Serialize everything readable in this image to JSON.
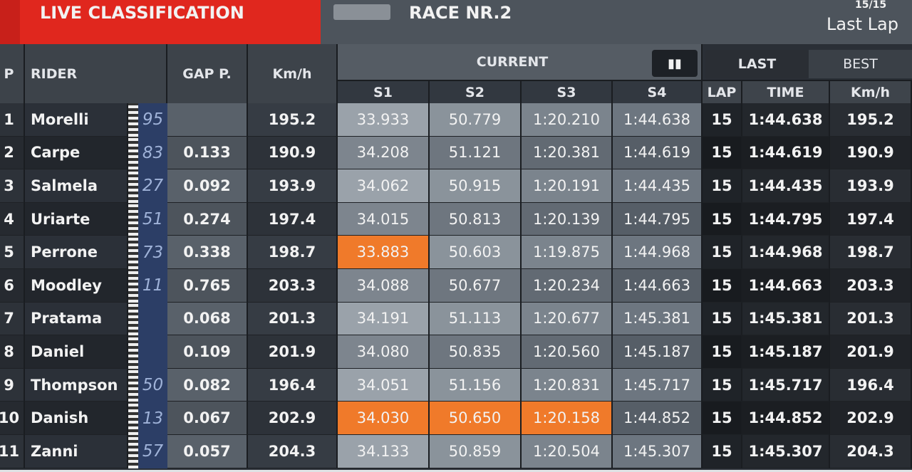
{
  "header": {
    "title": "LIVE CLASSIFICATION",
    "race": "RACE NR.2",
    "lap_count": "15/15",
    "status": "Last Lap"
  },
  "table": {
    "columns": [
      "P",
      "RIDER",
      "GAP P.",
      "Km/h",
      "S1",
      "S2",
      "S3",
      "S4",
      "LAP",
      "TIME",
      "Km/h"
    ],
    "groups": {
      "current": "CURRENT",
      "last": "LAST",
      "best": "BEST"
    },
    "rows": [
      {
        "pos": "1",
        "rider": "Morelli",
        "number": "95",
        "gap": null,
        "speed": "195.2",
        "sectors": [
          "33.933",
          "50.779",
          "1:20.210",
          "1:44.638"
        ],
        "lap": "15",
        "time": "1:44.638",
        "lap_speed": "195.2"
      },
      {
        "pos": "2",
        "rider": "Carpe",
        "number": "83",
        "gap": "0.133",
        "speed": "190.9",
        "sectors": [
          "34.208",
          "51.121",
          "1:20.381",
          "1:44.619"
        ],
        "lap": "15",
        "time": "1:44.619",
        "lap_speed": "190.9"
      },
      {
        "pos": "3",
        "rider": "Salmela",
        "number": "27",
        "gap": "0.092",
        "speed": "193.9",
        "sectors": [
          "34.062",
          "50.915",
          "1:20.191",
          "1:44.435"
        ],
        "lap": "15",
        "time": "1:44.435",
        "lap_speed": "193.9"
      },
      {
        "pos": "4",
        "rider": "Uriarte",
        "number": "51",
        "gap": "0.274",
        "speed": "197.4",
        "sectors": [
          "34.015",
          "50.813",
          "1:20.139",
          "1:44.795"
        ],
        "lap": "15",
        "time": "1:44.795",
        "lap_speed": "197.4"
      },
      {
        "pos": "5",
        "rider": "Perrone",
        "number": "73",
        "gap": "0.338",
        "speed": "198.7",
        "sectors": [
          {
            "text": "33.883",
            "color": "#f07a2a"
          },
          "50.603",
          "1:19.875",
          "1:44.968"
        ],
        "lap": "15",
        "time": "1:44.968",
        "lap_speed": "198.7"
      },
      {
        "pos": "6",
        "rider": "Moodley",
        "number": "11",
        "gap": "0.765",
        "speed": "203.3",
        "sectors": [
          "34.088",
          "50.677",
          "1:20.234",
          "1:44.663"
        ],
        "lap": "15",
        "time": "1:44.663",
        "lap_speed": "203.3"
      },
      {
        "pos": "7",
        "rider": "Pratama",
        "number": null,
        "gap": "0.068",
        "speed": "201.3",
        "sectors": [
          "34.191",
          "51.113",
          "1:20.677",
          "1:45.381"
        ],
        "lap": "15",
        "time": "1:45.381",
        "lap_speed": "201.3"
      },
      {
        "pos": "8",
        "rider": "Daniel",
        "number": null,
        "gap": "0.109",
        "speed": "201.9",
        "sectors": [
          "34.080",
          "50.835",
          "1:20.560",
          "1:45.187"
        ],
        "lap": "15",
        "time": "1:45.187",
        "lap_speed": "201.9"
      },
      {
        "pos": "9",
        "rider": "Thompson",
        "number": "50",
        "gap": "0.082",
        "speed": "196.4",
        "sectors": [
          "34.051",
          "51.156",
          "1:20.831",
          "1:45.717"
        ],
        "lap": "15",
        "time": "1:45.717",
        "lap_speed": "196.4"
      },
      {
        "pos": "10",
        "rider": "Danish",
        "number": "13",
        "gap": "0.067",
        "speed": "202.9",
        "sectors": [
          {
            "text": "34.030",
            "color": "#f07a2a"
          },
          {
            "text": "50.650",
            "color": "#f07a2a"
          },
          {
            "text": "1:20.158",
            "color": "#f07a2a"
          },
          "1:44.852"
        ],
        "lap": "15",
        "time": "1:44.852",
        "lap_speed": "202.9"
      },
      {
        "pos": "11",
        "rider": "Zanni",
        "number": "57",
        "gap": "0.057",
        "speed": "204.3",
        "sectors": [
          "34.133",
          "50.859",
          "1:20.504",
          "1:45.307"
        ],
        "lap": "15",
        "time": "1:45.307",
        "lap_speed": "204.3"
      }
    ]
  }
}
